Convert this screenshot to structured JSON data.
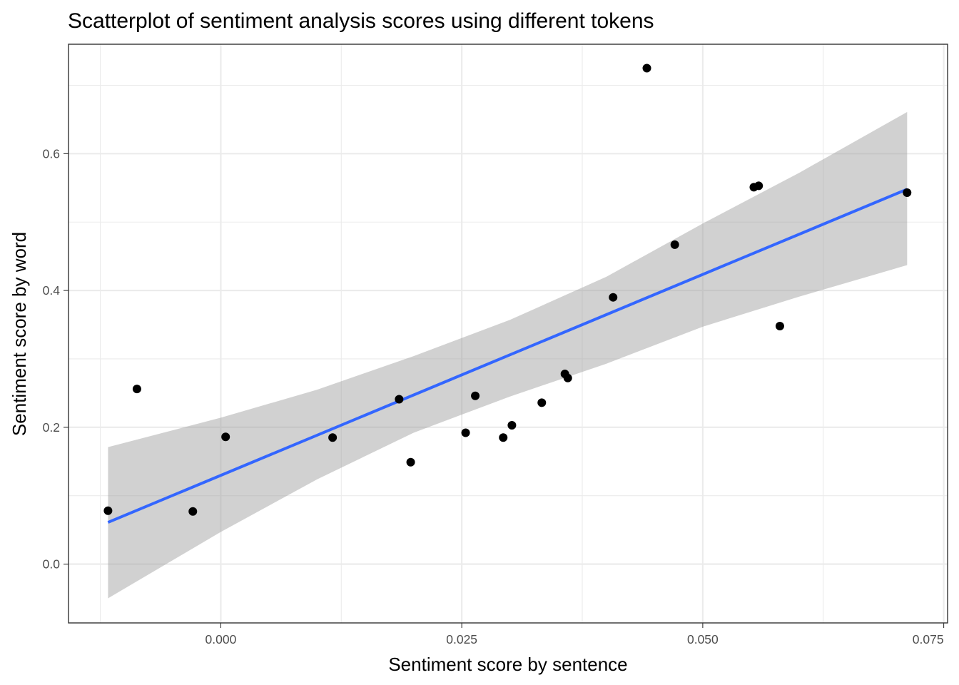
{
  "chart_data": {
    "type": "scatter",
    "title": "Scatterplot of sentiment analysis scores using different tokens",
    "xlabel": "Sentiment score by sentence",
    "ylabel": "Sentiment score by word",
    "xlim": [
      -0.0158,
      0.0754
    ],
    "ylim": [
      -0.086,
      0.76
    ],
    "xticks": [
      0,
      0.025,
      0.05,
      0.075
    ],
    "xtick_labels": [
      "0.000",
      "0.025",
      "0.050",
      "0.075"
    ],
    "yticks": [
      0,
      0.2,
      0.4,
      0.6
    ],
    "ytick_labels": [
      "0.0",
      "0.2",
      "0.4",
      "0.6"
    ],
    "grid": true,
    "legend": "none",
    "point_color": "#000000",
    "points": [
      {
        "x": -0.0117,
        "y": 0.078
      },
      {
        "x": -0.0087,
        "y": 0.256
      },
      {
        "x": -0.0029,
        "y": 0.077
      },
      {
        "x": 0.0005,
        "y": 0.186
      },
      {
        "x": 0.0116,
        "y": 0.185
      },
      {
        "x": 0.0185,
        "y": 0.241
      },
      {
        "x": 0.0197,
        "y": 0.149
      },
      {
        "x": 0.0254,
        "y": 0.192
      },
      {
        "x": 0.0264,
        "y": 0.246
      },
      {
        "x": 0.0293,
        "y": 0.185
      },
      {
        "x": 0.0302,
        "y": 0.203
      },
      {
        "x": 0.0333,
        "y": 0.236
      },
      {
        "x": 0.0357,
        "y": 0.278
      },
      {
        "x": 0.036,
        "y": 0.272
      },
      {
        "x": 0.0407,
        "y": 0.39
      },
      {
        "x": 0.0442,
        "y": 0.725
      },
      {
        "x": 0.0471,
        "y": 0.467
      },
      {
        "x": 0.0553,
        "y": 0.551
      },
      {
        "x": 0.0558,
        "y": 0.553
      },
      {
        "x": 0.058,
        "y": 0.348
      },
      {
        "x": 0.0712,
        "y": 0.543
      }
    ],
    "fit": {
      "method": "linear",
      "color": "#3366FF",
      "band_color": "#999999",
      "x": [
        -0.0117,
        0.0712
      ],
      "y": [
        0.061,
        0.548
      ],
      "band": {
        "x": [
          -0.0117,
          0.0,
          0.01,
          0.02,
          0.03,
          0.04,
          0.05,
          0.06,
          0.0712
        ],
        "lower": [
          -0.05,
          0.047,
          0.124,
          0.192,
          0.245,
          0.293,
          0.347,
          0.391,
          0.437
        ],
        "upper": [
          0.171,
          0.214,
          0.255,
          0.304,
          0.357,
          0.42,
          0.498,
          0.572,
          0.661
        ]
      }
    }
  }
}
